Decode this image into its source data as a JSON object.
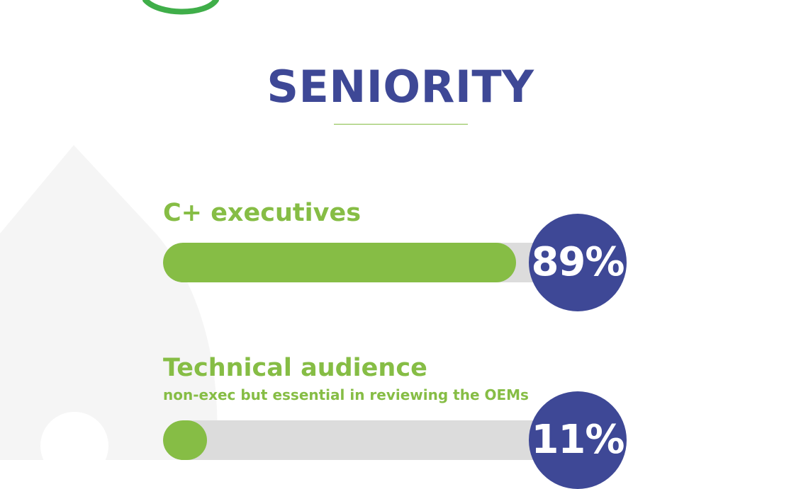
{
  "colors": {
    "green": "#86bd45",
    "navy": "#3e4896",
    "track": "#dcdcdc",
    "bg_shape": "#f5f5f5",
    "logo_green": "#3fae49"
  },
  "page": {
    "title": "SENIORITY"
  },
  "chart_data": {
    "type": "bar",
    "orientation": "horizontal",
    "title": "SENIORITY",
    "categories": [
      "C+ executives",
      "Technical audience"
    ],
    "values": [
      89,
      11
    ],
    "value_labels": [
      "89%",
      "11%"
    ],
    "subtitles": [
      "",
      "non-exec but essential in reviewing the OEMs"
    ],
    "unit": "%",
    "xlim": [
      0,
      100
    ],
    "grid": false,
    "legend": "none"
  },
  "metrics": [
    {
      "label": "C+ executives",
      "subtitle": "",
      "percent": 89,
      "percent_label": "89%"
    },
    {
      "label": "Technical audience",
      "subtitle": "non-exec but essential in reviewing the OEMs",
      "percent": 11,
      "percent_label": "11%"
    }
  ],
  "icons": {
    "logo": "logo-arc-icon"
  }
}
